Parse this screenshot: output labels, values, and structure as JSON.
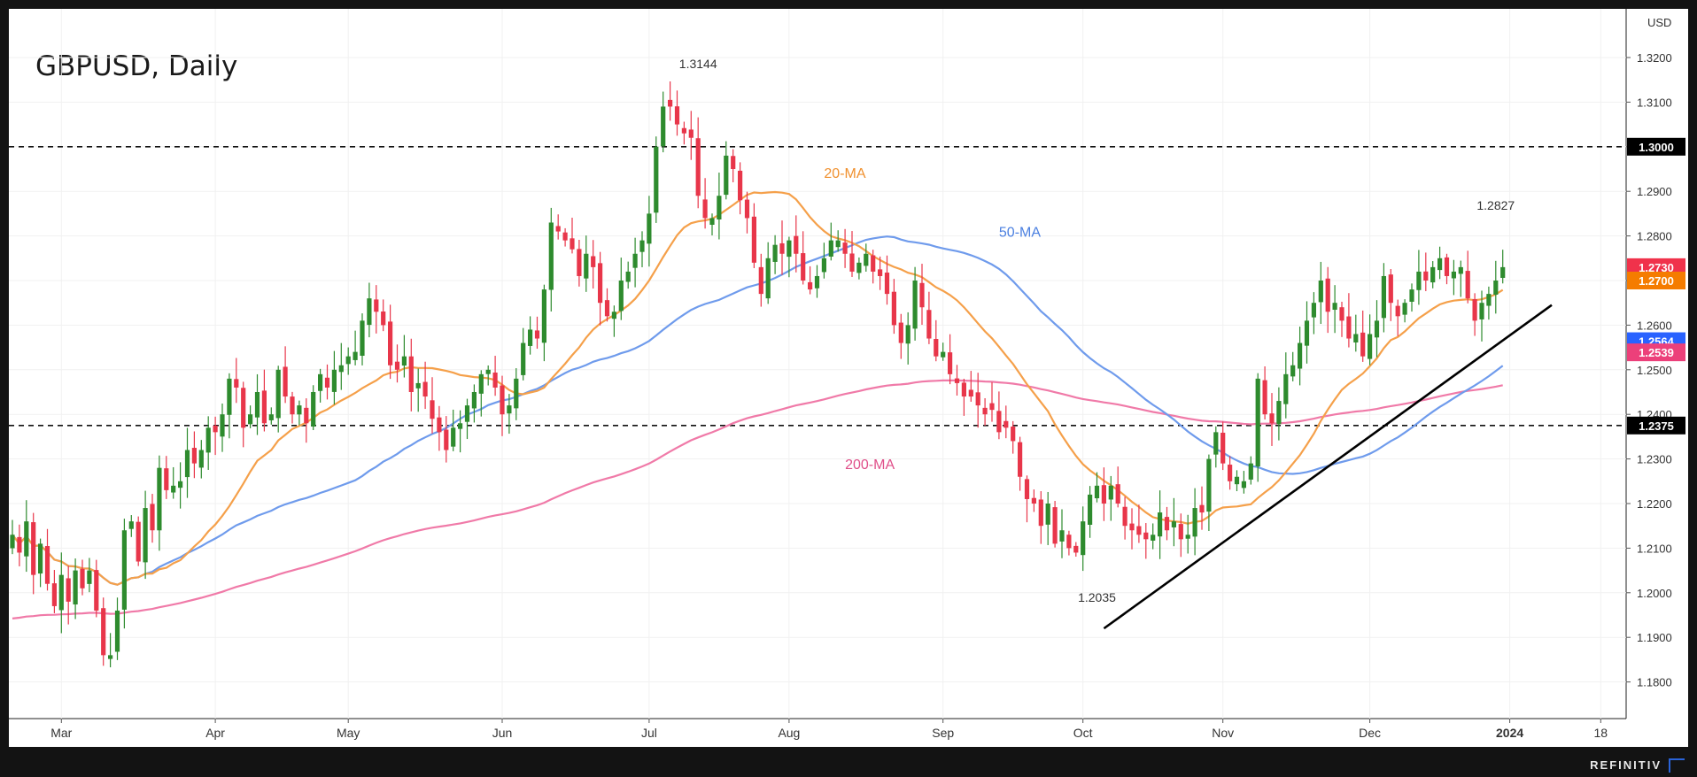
{
  "chart_data": {
    "type": "candlestick",
    "title": "GBPUSD, Daily",
    "currency": "USD",
    "ylim": [
      1.17,
      1.33
    ],
    "y_ticks": [
      "1.1800",
      "1.1900",
      "1.2000",
      "1.2100",
      "1.2200",
      "1.2300",
      "1.2400",
      "1.2500",
      "1.2600",
      "1.2700",
      "1.2800",
      "1.2900",
      "1.3000",
      "1.3100",
      "1.3200"
    ],
    "x_ticks": [
      {
        "label": "Mar",
        "idx": 7
      },
      {
        "label": "Apr",
        "idx": 29
      },
      {
        "label": "May",
        "idx": 48
      },
      {
        "label": "Jun",
        "idx": 70
      },
      {
        "label": "Jul",
        "idx": 91
      },
      {
        "label": "Aug",
        "idx": 111
      },
      {
        "label": "Sep",
        "idx": 133
      },
      {
        "label": "Oct",
        "idx": 153
      },
      {
        "label": "Nov",
        "idx": 173
      },
      {
        "label": "Dec",
        "idx": 194
      },
      {
        "label": "2024",
        "idx": 214
      },
      {
        "label": "18",
        "idx": 227
      }
    ],
    "horizontal_levels": [
      {
        "value": 1.3,
        "label": "1.3000"
      },
      {
        "value": 1.2375,
        "label": "1.2375"
      }
    ],
    "price_tags": [
      {
        "value": 1.273,
        "label": "1.2730",
        "color": "#f0324b"
      },
      {
        "value": 1.27,
        "label": "1.2700",
        "color": "#f57c00"
      },
      {
        "value": 1.2564,
        "label": "1.2564",
        "color": "#2962ff"
      },
      {
        "value": 1.2539,
        "label": "1.2539",
        "color": "#ec407a"
      }
    ],
    "annotations": [
      {
        "text": "1.3144",
        "idx": 98,
        "value": 1.3144,
        "pos": "above"
      },
      {
        "text": "1.2035",
        "idx": 155,
        "value": 1.2035,
        "pos": "below"
      },
      {
        "text": "1.2827",
        "idx": 212,
        "value": 1.2827,
        "pos": "above"
      }
    ],
    "series_labels": [
      {
        "name": "20-MA",
        "color": "#f0902e",
        "idx": 116,
        "value": 1.293
      },
      {
        "name": "50-MA",
        "color": "#4a7fe0",
        "idx": 141,
        "value": 1.2798
      },
      {
        "name": "200-MA",
        "color": "#e0508a",
        "idx": 119,
        "value": 1.2277
      }
    ],
    "trendline": {
      "from": {
        "idx": 156,
        "value": 1.192
      },
      "to": {
        "idx": 220,
        "value": 1.2645
      }
    },
    "ma_colors": {
      "ma20": "#f5a04a",
      "ma50": "#6f9bec",
      "ma200": "#f07aa8"
    },
    "candle_colors": {
      "up": "#2e8b2e",
      "down": "#e8364a"
    },
    "closes": [
      1.213,
      1.209,
      1.216,
      1.204,
      1.211,
      1.202,
      1.197,
      1.204,
      1.198,
      1.205,
      1.201,
      1.205,
      1.196,
      1.186,
      1.186,
      1.196,
      1.214,
      1.216,
      1.207,
      1.219,
      1.214,
      1.228,
      1.223,
      1.224,
      1.225,
      1.232,
      1.229,
      1.232,
      1.237,
      1.236,
      1.24,
      1.248,
      1.246,
      1.237,
      1.24,
      1.245,
      1.238,
      1.24,
      1.25,
      1.244,
      1.24,
      1.242,
      1.238,
      1.245,
      1.249,
      1.246,
      1.25,
      1.251,
      1.253,
      1.254,
      1.261,
      1.266,
      1.263,
      1.26,
      1.251,
      1.25,
      1.253,
      1.245,
      1.247,
      1.244,
      1.239,
      1.236,
      1.232,
      1.237,
      1.238,
      1.242,
      1.245,
      1.249,
      1.25,
      1.246,
      1.24,
      1.242,
      1.248,
      1.256,
      1.259,
      1.257,
      1.268,
      1.283,
      1.281,
      1.279,
      1.277,
      1.271,
      1.276,
      1.273,
      1.265,
      1.262,
      1.263,
      1.27,
      1.272,
      1.276,
      1.279,
      1.285,
      1.3,
      1.309,
      1.309,
      1.305,
      1.303,
      1.302,
      1.289,
      1.284,
      1.284,
      1.289,
      1.298,
      1.295,
      1.288,
      1.284,
      1.274,
      1.267,
      1.275,
      1.278,
      1.276,
      1.279,
      1.276,
      1.27,
      1.268,
      1.271,
      1.275,
      1.279,
      1.279,
      1.276,
      1.272,
      1.274,
      1.276,
      1.272,
      1.271,
      1.267,
      1.26,
      1.256,
      1.26,
      1.27,
      1.264,
      1.257,
      1.253,
      1.254,
      1.249,
      1.247,
      1.244,
      1.244,
      1.242,
      1.24,
      1.241,
      1.236,
      1.237,
      1.234,
      1.226,
      1.221,
      1.22,
      1.215,
      1.22,
      1.211,
      1.214,
      1.21,
      1.209,
      1.216,
      1.222,
      1.224,
      1.22,
      1.224,
      1.22,
      1.215,
      1.214,
      1.213,
      1.212,
      1.213,
      1.218,
      1.214,
      1.216,
      1.212,
      1.213,
      1.219,
      1.218,
      1.23,
      1.236,
      1.229,
      1.225,
      1.226,
      1.225,
      1.229,
      1.248,
      1.24,
      1.238,
      1.243,
      1.249,
      1.251,
      1.256,
      1.261,
      1.265,
      1.27,
      1.263,
      1.265,
      1.261,
      1.257,
      1.258,
      1.253,
      1.258,
      1.261,
      1.271,
      1.265,
      1.262,
      1.265,
      1.268,
      1.272,
      1.27,
      1.273,
      1.275,
      1.271,
      1.272,
      1.273,
      1.266,
      1.261,
      1.265,
      1.267,
      1.27,
      1.273
    ]
  }
}
